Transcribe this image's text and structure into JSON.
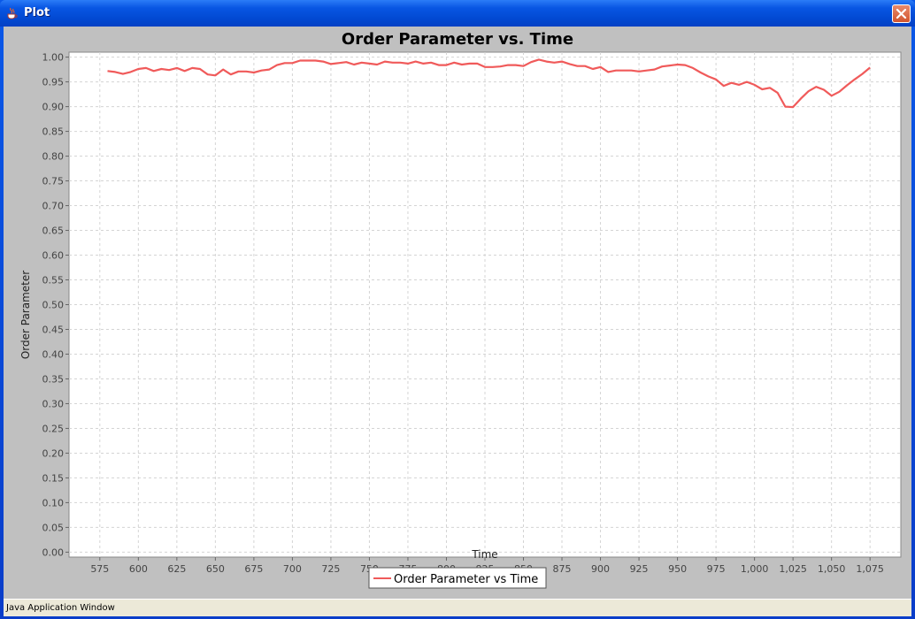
{
  "window": {
    "title": "Plot",
    "status_text": "Java Application Window",
    "icons": {
      "app": "java-cup-icon",
      "close": "close-icon"
    }
  },
  "colors": {
    "series": "#f05a5a",
    "plot_bg": "#ffffff",
    "panel_bg": "#c0c0c0",
    "grid": "#d4d4d4"
  },
  "chart_data": {
    "type": "line",
    "title": "Order Parameter vs. Time",
    "xlabel": "Time",
    "ylabel": "Order Parameter",
    "xlim": [
      555,
      1095
    ],
    "ylim": [
      -0.01,
      1.01
    ],
    "xticks": [
      575,
      600,
      625,
      650,
      675,
      700,
      725,
      750,
      775,
      800,
      825,
      850,
      875,
      900,
      925,
      950,
      975,
      1000,
      1025,
      1050,
      1075
    ],
    "xtick_labels": [
      "575",
      "600",
      "625",
      "650",
      "675",
      "700",
      "725",
      "750",
      "775",
      "800",
      "825",
      "850",
      "875",
      "900",
      "925",
      "950",
      "975",
      "1,000",
      "1,025",
      "1,050",
      "1,075"
    ],
    "yticks": [
      0.0,
      0.05,
      0.1,
      0.15,
      0.2,
      0.25,
      0.3,
      0.35,
      0.4,
      0.45,
      0.5,
      0.55,
      0.6,
      0.65,
      0.7,
      0.75,
      0.8,
      0.85,
      0.9,
      0.95,
      1.0
    ],
    "ytick_labels": [
      "0.00",
      "0.05",
      "0.10",
      "0.15",
      "0.20",
      "0.25",
      "0.30",
      "0.35",
      "0.40",
      "0.45",
      "0.50",
      "0.55",
      "0.60",
      "0.65",
      "0.70",
      "0.75",
      "0.80",
      "0.85",
      "0.90",
      "0.95",
      "1.00"
    ],
    "grid": true,
    "legend_position": "bottom-center",
    "series": [
      {
        "name": "Order Parameter vs Time",
        "x": [
          580,
          585,
          590,
          595,
          600,
          605,
          610,
          615,
          620,
          625,
          630,
          635,
          640,
          645,
          650,
          655,
          660,
          665,
          670,
          675,
          680,
          685,
          690,
          695,
          700,
          705,
          710,
          715,
          720,
          725,
          730,
          735,
          740,
          745,
          750,
          755,
          760,
          765,
          770,
          775,
          780,
          785,
          790,
          795,
          800,
          805,
          810,
          815,
          820,
          825,
          830,
          835,
          840,
          845,
          850,
          855,
          860,
          865,
          870,
          875,
          880,
          885,
          890,
          895,
          900,
          905,
          910,
          915,
          920,
          925,
          930,
          935,
          940,
          945,
          950,
          955,
          960,
          965,
          970,
          975,
          980,
          985,
          990,
          995,
          1000,
          1005,
          1010,
          1015,
          1020,
          1025,
          1030,
          1035,
          1040,
          1045,
          1050,
          1055,
          1060,
          1065,
          1070,
          1075
        ],
        "y": [
          0.972,
          0.97,
          0.966,
          0.97,
          0.976,
          0.978,
          0.972,
          0.976,
          0.974,
          0.978,
          0.972,
          0.978,
          0.976,
          0.965,
          0.963,
          0.975,
          0.965,
          0.971,
          0.971,
          0.969,
          0.973,
          0.975,
          0.984,
          0.988,
          0.988,
          0.993,
          0.993,
          0.993,
          0.991,
          0.986,
          0.988,
          0.99,
          0.985,
          0.989,
          0.987,
          0.985,
          0.991,
          0.989,
          0.989,
          0.987,
          0.991,
          0.987,
          0.989,
          0.984,
          0.984,
          0.989,
          0.985,
          0.987,
          0.987,
          0.98,
          0.98,
          0.981,
          0.984,
          0.984,
          0.982,
          0.99,
          0.995,
          0.991,
          0.989,
          0.991,
          0.986,
          0.982,
          0.982,
          0.976,
          0.98,
          0.97,
          0.973,
          0.973,
          0.973,
          0.971,
          0.973,
          0.975,
          0.981,
          0.983,
          0.985,
          0.984,
          0.978,
          0.969,
          0.961,
          0.955,
          0.942,
          0.948,
          0.944,
          0.95,
          0.944,
          0.935,
          0.938,
          0.928,
          0.9,
          0.899,
          0.916,
          0.931,
          0.94,
          0.934,
          0.922,
          0.93,
          0.943,
          0.955,
          0.966,
          0.979
        ]
      }
    ]
  }
}
